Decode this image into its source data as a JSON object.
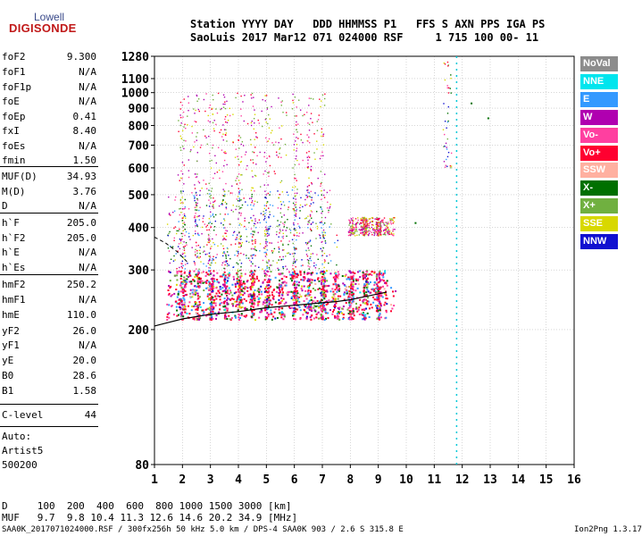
{
  "logo": {
    "line1": "Lowell",
    "line2": "DIGISONDE"
  },
  "header": {
    "line1": "Station YYYY DAY   DDD HHMMSS P1   FFS S AXN PPS IGA PS",
    "line2": "SaoLuis 2017 Mar12 071 024000 RSF     1 715 100 00- 11"
  },
  "params": [
    {
      "label": "foF2",
      "value": "9.300"
    },
    {
      "label": "foF1",
      "value": "N/A"
    },
    {
      "label": "foF1p",
      "value": "N/A"
    },
    {
      "label": "foE",
      "value": "N/A"
    },
    {
      "label": "foEp",
      "value": "0.41"
    },
    {
      "label": "fxI",
      "value": "8.40"
    },
    {
      "label": "foEs",
      "value": "N/A"
    },
    {
      "label": "fmin",
      "value": "1.50"
    },
    {
      "label": "MUF(D)",
      "value": "34.93"
    },
    {
      "label": "M(D)",
      "value": "3.76"
    },
    {
      "label": "D",
      "value": "N/A"
    },
    {
      "label": "h`F",
      "value": "205.0"
    },
    {
      "label": "h`F2",
      "value": "205.0"
    },
    {
      "label": "h`E",
      "value": "N/A"
    },
    {
      "label": "h`Es",
      "value": "N/A"
    },
    {
      "label": "hmF2",
      "value": "250.2"
    },
    {
      "label": "hmF1",
      "value": "N/A"
    },
    {
      "label": "hmE",
      "value": "110.0"
    },
    {
      "label": "yF2",
      "value": "26.0"
    },
    {
      "label": "yF1",
      "value": "N/A"
    },
    {
      "label": "yE",
      "value": "20.0"
    },
    {
      "label": "B0",
      "value": "28.6"
    },
    {
      "label": "B1",
      "value": "1.58"
    }
  ],
  "clevel": {
    "label": "C-level",
    "value": "44"
  },
  "auto": [
    "Auto:",
    "Artist5",
    "500200"
  ],
  "legend": [
    {
      "label": "NoVal",
      "bg": "#8c8c8c",
      "fg": "#ffffff"
    },
    {
      "label": "NNE",
      "bg": "#00e5ee",
      "fg": "#ffffff"
    },
    {
      "label": "E",
      "bg": "#3399ff",
      "fg": "#ffffff"
    },
    {
      "label": "W",
      "bg": "#b000b0",
      "fg": "#ffffff"
    },
    {
      "label": "Vo-",
      "bg": "#ff3fa0",
      "fg": "#ffffff"
    },
    {
      "label": "Vo+",
      "bg": "#ff0030",
      "fg": "#ffffff"
    },
    {
      "label": "SSW",
      "bg": "#ffb0a0",
      "fg": "#ffffff"
    },
    {
      "label": "X-",
      "bg": "#007000",
      "fg": "#ffffff"
    },
    {
      "label": "X+",
      "bg": "#70b040",
      "fg": "#ffffff"
    },
    {
      "label": "SSE",
      "bg": "#d8d800",
      "fg": "#ffffff"
    },
    {
      "label": "NNW",
      "bg": "#1010d0",
      "fg": "#ffffff"
    }
  ],
  "muf_table": {
    "d_line": "D     100  200  400  600  800 1000 1500 3000 [km]",
    "muf_line": "MUF   9.7  9.8 10.4 11.3 12.6 14.6 20.2 34.9 [MHz]"
  },
  "footer": {
    "left": "SAA0K_2017071024000.RSF / 300fx256h 50 kHz 5.0 km / DPS-4 SAA0K 903 / 2.6 S 315.8 E",
    "right": "Ion2Png 1.3.17"
  },
  "chart_data": {
    "type": "scatter",
    "title": "",
    "xlabel": "",
    "ylabel": "",
    "xlim": [
      1,
      16
    ],
    "ylim": [
      80,
      1280
    ],
    "y_scale": "log",
    "x_ticks": [
      1,
      2,
      3,
      4,
      5,
      6,
      7,
      8,
      9,
      10,
      11,
      12,
      13,
      14,
      15,
      16
    ],
    "y_ticks": [
      80,
      200,
      300,
      400,
      500,
      600,
      700,
      800,
      900,
      1000,
      1100,
      1280
    ],
    "grid": true,
    "marker_line_x": 11.8,
    "trace": {
      "name": "",
      "x": [
        1.0,
        1.5,
        2.0,
        3.0,
        4.0,
        5.0,
        6.0,
        7.0,
        7.5,
        8.0,
        8.5,
        9.0,
        9.3
      ],
      "y": [
        205,
        210,
        215,
        222,
        226,
        232,
        236,
        240,
        242,
        245,
        250,
        255,
        258
      ]
    },
    "trace_dashed": {
      "x": [
        1.0,
        1.4,
        1.8,
        2.2
      ],
      "y": [
        375,
        360,
        340,
        315
      ]
    },
    "echo_regions": [
      {
        "x_min": 1.6,
        "x_max": 9.3,
        "y_min": 215,
        "y_max": 300,
        "density": "high"
      },
      {
        "x_min": 1.6,
        "x_max": 7.3,
        "y_min": 300,
        "y_max": 520,
        "density": "medium"
      },
      {
        "x_min": 1.8,
        "x_max": 7.0,
        "y_min": 520,
        "y_max": 1000,
        "density": "low"
      },
      {
        "x_min": 8.0,
        "x_max": 9.4,
        "y_min": 380,
        "y_max": 430,
        "density": "low"
      },
      {
        "x_min": 11.3,
        "x_max": 11.6,
        "y_min": 600,
        "y_max": 1260,
        "density": "sparse"
      }
    ],
    "isolated_points": [
      {
        "x": 12.3,
        "y": 935,
        "color": "#007000"
      },
      {
        "x": 12.9,
        "y": 845,
        "color": "#007000"
      },
      {
        "x": 10.3,
        "y": 415,
        "color": "#007000"
      }
    ]
  }
}
